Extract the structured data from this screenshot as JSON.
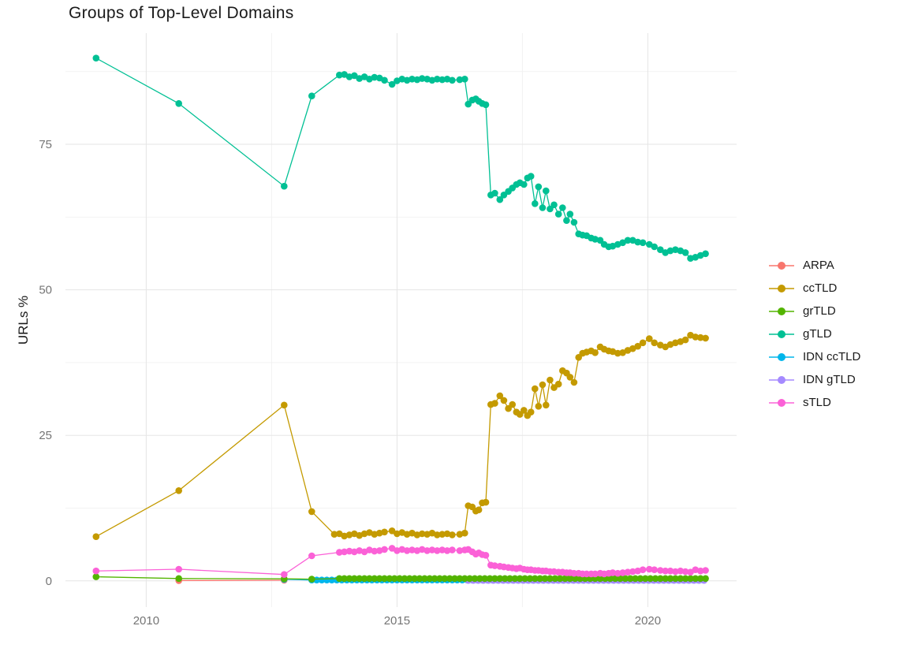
{
  "chart_data": {
    "type": "line",
    "title": "Groups of Top-Level Domains",
    "xlabel": "",
    "ylabel": "URLs %",
    "legend_position": "right",
    "grid": "major-and-minor",
    "background": "#ffffff",
    "grid_major_color": "#e5e5e5",
    "grid_minor_color": "#f2f2f2",
    "tick_label_color": "#757575",
    "axes": {
      "x": {
        "ticks": [
          2010,
          2015,
          2020
        ],
        "tick_labels": [
          "2010",
          "2015",
          "2020"
        ],
        "minor": [
          2012.5,
          2017.5
        ],
        "range": [
          2008.39,
          2021.77
        ]
      },
      "y": {
        "ticks": [
          0,
          25,
          50,
          75
        ],
        "tick_labels": [
          "0",
          "25",
          "50",
          "75"
        ],
        "minor": [
          12.5,
          37.5,
          62.5,
          87.5
        ],
        "range": [
          -4.5,
          94.1
        ]
      }
    },
    "legend": {
      "items": [
        {
          "label": "ARPA",
          "color": "#F8766D"
        },
        {
          "label": "ccTLD",
          "color": "#C49A00"
        },
        {
          "label": "grTLD",
          "color": "#53B400"
        },
        {
          "label": "gTLD",
          "color": "#00C094"
        },
        {
          "label": "IDN ccTLD",
          "color": "#00B6EB"
        },
        {
          "label": "IDN gTLD",
          "color": "#A58AFF"
        },
        {
          "label": "sTLD",
          "color": "#FB61D7"
        }
      ]
    },
    "series": [
      {
        "name": "ARPA",
        "color": "#F8766D",
        "points": [
          [
            2010.65,
            0.05
          ],
          [
            2012.75,
            0.1
          ]
        ]
      },
      {
        "name": "ccTLD",
        "color": "#C49A00",
        "points": [
          [
            2009.0,
            7.6
          ],
          [
            2010.65,
            15.5
          ],
          [
            2012.75,
            30.2
          ],
          [
            2013.3,
            11.9
          ],
          [
            2013.75,
            8.0
          ],
          [
            2013.85,
            8.1
          ],
          [
            2013.95,
            7.7
          ],
          [
            2014.05,
            7.9
          ],
          [
            2014.15,
            8.1
          ],
          [
            2014.25,
            7.8
          ],
          [
            2014.35,
            8.1
          ],
          [
            2014.45,
            8.3
          ],
          [
            2014.55,
            8.0
          ],
          [
            2014.65,
            8.2
          ],
          [
            2014.75,
            8.4
          ],
          [
            2014.9,
            8.6
          ],
          [
            2015.0,
            8.1
          ],
          [
            2015.1,
            8.3
          ],
          [
            2015.2,
            8.0
          ],
          [
            2015.3,
            8.2
          ],
          [
            2015.4,
            7.9
          ],
          [
            2015.5,
            8.1
          ],
          [
            2015.6,
            8.0
          ],
          [
            2015.7,
            8.2
          ],
          [
            2015.8,
            7.9
          ],
          [
            2015.9,
            8.0
          ],
          [
            2016.0,
            8.1
          ],
          [
            2016.1,
            7.9
          ],
          [
            2016.25,
            8.0
          ],
          [
            2016.35,
            8.2
          ],
          [
            2016.42,
            12.9
          ],
          [
            2016.5,
            12.7
          ],
          [
            2016.57,
            12.0
          ],
          [
            2016.63,
            12.2
          ],
          [
            2016.7,
            13.4
          ],
          [
            2016.77,
            13.5
          ],
          [
            2016.87,
            30.3
          ],
          [
            2016.95,
            30.5
          ],
          [
            2017.05,
            31.8
          ],
          [
            2017.13,
            31.0
          ],
          [
            2017.22,
            29.6
          ],
          [
            2017.3,
            30.3
          ],
          [
            2017.38,
            29.0
          ],
          [
            2017.45,
            28.6
          ],
          [
            2017.53,
            29.3
          ],
          [
            2017.6,
            28.4
          ],
          [
            2017.67,
            29.0
          ],
          [
            2017.75,
            33.0
          ],
          [
            2017.82,
            30.0
          ],
          [
            2017.9,
            33.7
          ],
          [
            2017.97,
            30.2
          ],
          [
            2018.05,
            34.5
          ],
          [
            2018.13,
            33.2
          ],
          [
            2018.22,
            33.8
          ],
          [
            2018.3,
            36.1
          ],
          [
            2018.38,
            35.7
          ],
          [
            2018.45,
            35.0
          ],
          [
            2018.53,
            34.1
          ],
          [
            2018.62,
            38.4
          ],
          [
            2018.7,
            39.1
          ],
          [
            2018.78,
            39.3
          ],
          [
            2018.87,
            39.5
          ],
          [
            2018.95,
            39.2
          ],
          [
            2019.05,
            40.2
          ],
          [
            2019.13,
            39.8
          ],
          [
            2019.22,
            39.5
          ],
          [
            2019.3,
            39.4
          ],
          [
            2019.4,
            39.1
          ],
          [
            2019.5,
            39.2
          ],
          [
            2019.6,
            39.6
          ],
          [
            2019.7,
            39.9
          ],
          [
            2019.8,
            40.3
          ],
          [
            2019.9,
            40.9
          ],
          [
            2020.03,
            41.6
          ],
          [
            2020.13,
            40.9
          ],
          [
            2020.25,
            40.5
          ],
          [
            2020.35,
            40.2
          ],
          [
            2020.45,
            40.6
          ],
          [
            2020.55,
            40.9
          ],
          [
            2020.65,
            41.1
          ],
          [
            2020.75,
            41.4
          ],
          [
            2020.85,
            42.2
          ],
          [
            2020.95,
            41.9
          ],
          [
            2021.05,
            41.8
          ],
          [
            2021.15,
            41.7
          ]
        ]
      },
      {
        "name": "grTLD",
        "color": "#53B400",
        "points": [
          [
            2009.0,
            0.7
          ],
          [
            2010.65,
            0.4
          ],
          [
            2012.75,
            0.35
          ],
          [
            2013.3,
            0.3
          ]
        ],
        "runs": [
          {
            "x0": 2013.85,
            "x1": 2021.15,
            "step": 0.1,
            "y": 0.4
          }
        ]
      },
      {
        "name": "gTLD",
        "color": "#00C094",
        "points": [
          [
            2009.0,
            89.8
          ],
          [
            2010.65,
            82.0
          ],
          [
            2012.75,
            67.8
          ],
          [
            2013.3,
            83.3
          ],
          [
            2013.85,
            86.9
          ],
          [
            2013.95,
            87.0
          ],
          [
            2014.05,
            86.6
          ],
          [
            2014.15,
            86.8
          ],
          [
            2014.25,
            86.3
          ],
          [
            2014.35,
            86.6
          ],
          [
            2014.45,
            86.2
          ],
          [
            2014.55,
            86.5
          ],
          [
            2014.65,
            86.4
          ],
          [
            2014.75,
            86.0
          ],
          [
            2014.9,
            85.3
          ],
          [
            2015.0,
            85.9
          ],
          [
            2015.1,
            86.2
          ],
          [
            2015.2,
            86.0
          ],
          [
            2015.3,
            86.2
          ],
          [
            2015.4,
            86.1
          ],
          [
            2015.5,
            86.3
          ],
          [
            2015.6,
            86.2
          ],
          [
            2015.7,
            86.0
          ],
          [
            2015.8,
            86.2
          ],
          [
            2015.9,
            86.1
          ],
          [
            2016.0,
            86.2
          ],
          [
            2016.1,
            86.0
          ],
          [
            2016.25,
            86.1
          ],
          [
            2016.35,
            86.2
          ],
          [
            2016.42,
            81.9
          ],
          [
            2016.5,
            82.6
          ],
          [
            2016.57,
            82.8
          ],
          [
            2016.63,
            82.4
          ],
          [
            2016.7,
            82.0
          ],
          [
            2016.77,
            81.8
          ],
          [
            2016.87,
            66.3
          ],
          [
            2016.95,
            66.6
          ],
          [
            2017.05,
            65.5
          ],
          [
            2017.13,
            66.3
          ],
          [
            2017.22,
            66.9
          ],
          [
            2017.3,
            67.5
          ],
          [
            2017.38,
            68.1
          ],
          [
            2017.45,
            68.4
          ],
          [
            2017.53,
            68.1
          ],
          [
            2017.6,
            69.2
          ],
          [
            2017.67,
            69.5
          ],
          [
            2017.75,
            64.8
          ],
          [
            2017.82,
            67.7
          ],
          [
            2017.9,
            64.1
          ],
          [
            2017.97,
            67.0
          ],
          [
            2018.05,
            63.9
          ],
          [
            2018.13,
            64.6
          ],
          [
            2018.22,
            63.0
          ],
          [
            2018.3,
            64.1
          ],
          [
            2018.38,
            61.9
          ],
          [
            2018.45,
            63.0
          ],
          [
            2018.53,
            61.6
          ],
          [
            2018.62,
            59.6
          ],
          [
            2018.7,
            59.4
          ],
          [
            2018.78,
            59.3
          ],
          [
            2018.87,
            58.9
          ],
          [
            2018.95,
            58.7
          ],
          [
            2019.05,
            58.5
          ],
          [
            2019.13,
            57.8
          ],
          [
            2019.22,
            57.4
          ],
          [
            2019.3,
            57.5
          ],
          [
            2019.4,
            57.8
          ],
          [
            2019.5,
            58.1
          ],
          [
            2019.6,
            58.5
          ],
          [
            2019.7,
            58.5
          ],
          [
            2019.8,
            58.2
          ],
          [
            2019.9,
            58.1
          ],
          [
            2020.03,
            57.8
          ],
          [
            2020.13,
            57.4
          ],
          [
            2020.25,
            56.9
          ],
          [
            2020.35,
            56.4
          ],
          [
            2020.45,
            56.7
          ],
          [
            2020.55,
            56.9
          ],
          [
            2020.65,
            56.7
          ],
          [
            2020.75,
            56.4
          ],
          [
            2020.85,
            55.4
          ],
          [
            2020.95,
            55.6
          ],
          [
            2021.05,
            55.9
          ],
          [
            2021.15,
            56.2
          ]
        ]
      },
      {
        "name": "IDN ccTLD",
        "color": "#00B6EB",
        "points": [
          [
            2012.75,
            0.25
          ]
        ],
        "runs": [
          {
            "x0": 2013.3,
            "x1": 2021.15,
            "step": 0.1,
            "y": 0.15
          }
        ]
      },
      {
        "name": "IDN gTLD",
        "color": "#A58AFF",
        "points": [],
        "runs": [
          {
            "x0": 2016.42,
            "x1": 2021.15,
            "step": 0.1,
            "y": 0.08
          }
        ]
      },
      {
        "name": "sTLD",
        "color": "#FB61D7",
        "points": [
          [
            2009.0,
            1.7
          ],
          [
            2010.65,
            2.0
          ],
          [
            2012.75,
            1.1
          ],
          [
            2013.3,
            4.3
          ],
          [
            2013.85,
            4.9
          ],
          [
            2013.95,
            5.0
          ],
          [
            2014.05,
            5.1
          ],
          [
            2014.15,
            5.0
          ],
          [
            2014.25,
            5.2
          ],
          [
            2014.35,
            5.0
          ],
          [
            2014.45,
            5.3
          ],
          [
            2014.55,
            5.1
          ],
          [
            2014.65,
            5.2
          ],
          [
            2014.75,
            5.4
          ],
          [
            2014.9,
            5.6
          ],
          [
            2015.0,
            5.2
          ],
          [
            2015.1,
            5.4
          ],
          [
            2015.2,
            5.2
          ],
          [
            2015.3,
            5.3
          ],
          [
            2015.4,
            5.2
          ],
          [
            2015.5,
            5.4
          ],
          [
            2015.6,
            5.2
          ],
          [
            2015.7,
            5.3
          ],
          [
            2015.8,
            5.2
          ],
          [
            2015.9,
            5.3
          ],
          [
            2016.0,
            5.2
          ],
          [
            2016.1,
            5.3
          ],
          [
            2016.25,
            5.2
          ],
          [
            2016.35,
            5.3
          ],
          [
            2016.42,
            5.4
          ],
          [
            2016.5,
            5.0
          ],
          [
            2016.57,
            4.6
          ],
          [
            2016.63,
            4.8
          ],
          [
            2016.7,
            4.5
          ],
          [
            2016.77,
            4.4
          ],
          [
            2016.87,
            2.7
          ],
          [
            2016.95,
            2.6
          ],
          [
            2017.05,
            2.5
          ],
          [
            2017.13,
            2.4
          ],
          [
            2017.22,
            2.3
          ],
          [
            2017.3,
            2.2
          ],
          [
            2017.38,
            2.1
          ],
          [
            2017.45,
            2.2
          ],
          [
            2017.53,
            2.0
          ],
          [
            2017.6,
            1.9
          ],
          [
            2017.67,
            1.9
          ],
          [
            2017.75,
            1.8
          ],
          [
            2017.82,
            1.8
          ],
          [
            2017.9,
            1.7
          ],
          [
            2017.97,
            1.7
          ],
          [
            2018.05,
            1.6
          ],
          [
            2018.13,
            1.6
          ],
          [
            2018.22,
            1.5
          ],
          [
            2018.3,
            1.5
          ],
          [
            2018.38,
            1.4
          ],
          [
            2018.45,
            1.4
          ],
          [
            2018.53,
            1.3
          ],
          [
            2018.62,
            1.3
          ],
          [
            2018.7,
            1.2
          ],
          [
            2018.78,
            1.2
          ],
          [
            2018.87,
            1.2
          ],
          [
            2018.95,
            1.2
          ],
          [
            2019.05,
            1.3
          ],
          [
            2019.13,
            1.2
          ],
          [
            2019.22,
            1.3
          ],
          [
            2019.3,
            1.4
          ],
          [
            2019.4,
            1.3
          ],
          [
            2019.5,
            1.4
          ],
          [
            2019.6,
            1.5
          ],
          [
            2019.7,
            1.6
          ],
          [
            2019.8,
            1.7
          ],
          [
            2019.9,
            1.9
          ],
          [
            2020.03,
            2.0
          ],
          [
            2020.13,
            1.9
          ],
          [
            2020.25,
            1.8
          ],
          [
            2020.35,
            1.7
          ],
          [
            2020.45,
            1.7
          ],
          [
            2020.55,
            1.6
          ],
          [
            2020.65,
            1.7
          ],
          [
            2020.75,
            1.6
          ],
          [
            2020.85,
            1.5
          ],
          [
            2020.95,
            1.9
          ],
          [
            2021.05,
            1.7
          ],
          [
            2021.15,
            1.8
          ]
        ]
      }
    ]
  }
}
